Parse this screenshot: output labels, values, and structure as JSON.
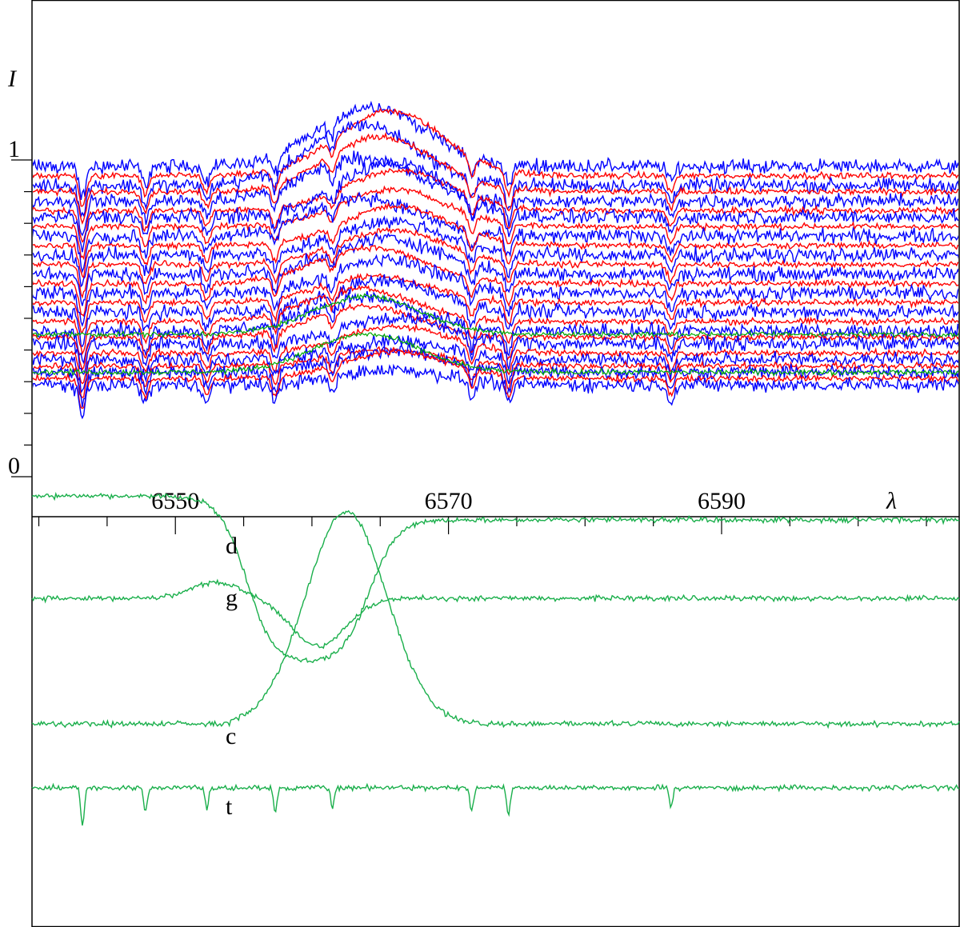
{
  "chart_data": {
    "type": "line",
    "title": "",
    "y_axis": {
      "label": "I",
      "range": [
        0,
        1.25
      ],
      "tick_step": 0.1,
      "labeled_ticks": [
        {
          "value": 0,
          "text": "0"
        },
        {
          "value": 1,
          "text": "1"
        }
      ]
    },
    "x_axis": {
      "label": "λ",
      "range": [
        6539.5,
        6607.4
      ],
      "labeled_ticks": [
        {
          "value": 6550,
          "text": "6550"
        },
        {
          "value": 6570,
          "text": "6570"
        },
        {
          "value": 6590,
          "text": "6590"
        }
      ],
      "minor_step": 5
    },
    "spectra_panel": {
      "description_series_colors": [
        "#0000ff",
        "#ff0000",
        "#00aa00"
      ],
      "count": 27,
      "continuum_offsets": [
        0.98,
        0.95,
        0.92,
        0.9,
        0.87,
        0.84,
        0.82,
        0.79,
        0.76,
        0.73,
        0.7,
        0.67,
        0.64,
        0.61,
        0.58,
        0.55,
        0.52,
        0.49,
        0.46,
        0.44,
        0.42,
        0.39,
        0.37,
        0.35,
        0.33,
        0.31,
        0.29
      ],
      "noise_amplitude": 0.012,
      "emission_center": 6565,
      "emission_width": 5.5,
      "emission_peak": [
        0.18,
        0.05
      ],
      "absorption_lines": [
        {
          "lambda": 6543.2,
          "depth": 0.1
        },
        {
          "lambda": 6547.8,
          "depth": 0.06
        },
        {
          "lambda": 6552.3,
          "depth": 0.05
        },
        {
          "lambda": 6557.3,
          "depth": 0.06
        },
        {
          "lambda": 6561.5,
          "depth": 0.05
        },
        {
          "lambda": 6571.7,
          "depth": 0.06
        },
        {
          "lambda": 6574.4,
          "depth": 0.07
        },
        {
          "lambda": 6586.3,
          "depth": 0.05
        }
      ]
    },
    "component_curves": [
      {
        "label": "d",
        "description": "high continuum, descending through the line center"
      },
      {
        "label": "g",
        "description": "mid continuum with dip at line center"
      },
      {
        "label": "c",
        "description": "low continuum with central emission peak"
      },
      {
        "label": "t",
        "description": "telluric absorption template"
      }
    ]
  }
}
